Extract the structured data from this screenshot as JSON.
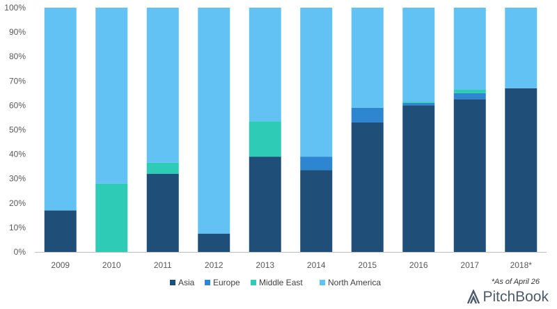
{
  "chart_data": {
    "type": "bar",
    "stacked": true,
    "categories": [
      "2009",
      "2010",
      "2011",
      "2012",
      "2013",
      "2014",
      "2015",
      "2016",
      "2017",
      "2018*"
    ],
    "series": [
      {
        "name": "Asia",
        "color": "#1f4e79",
        "values": [
          17,
          0,
          32,
          7.5,
          39,
          33.5,
          53,
          60,
          62.5,
          67
        ]
      },
      {
        "name": "Europe",
        "color": "#2e86d1",
        "values": [
          0,
          0,
          0,
          0,
          0,
          5.5,
          6,
          1,
          2.5,
          0
        ]
      },
      {
        "name": "Middle East",
        "color": "#2ecbb6",
        "values": [
          0,
          28,
          4.5,
          0,
          14.5,
          0,
          0,
          0.5,
          1.5,
          0
        ]
      },
      {
        "name": "North America",
        "color": "#63c2f4",
        "values": [
          83,
          72,
          63.5,
          92.5,
          46.5,
          61,
          41,
          38.5,
          33.5,
          33
        ]
      }
    ],
    "ylim": [
      0,
      100
    ],
    "yticks": [
      "0%",
      "10%",
      "20%",
      "30%",
      "40%",
      "50%",
      "60%",
      "70%",
      "80%",
      "90%",
      "100%"
    ],
    "legend_position": "bottom",
    "grid": false
  },
  "footnote": "*As of April 26",
  "brand": "PitchBook"
}
